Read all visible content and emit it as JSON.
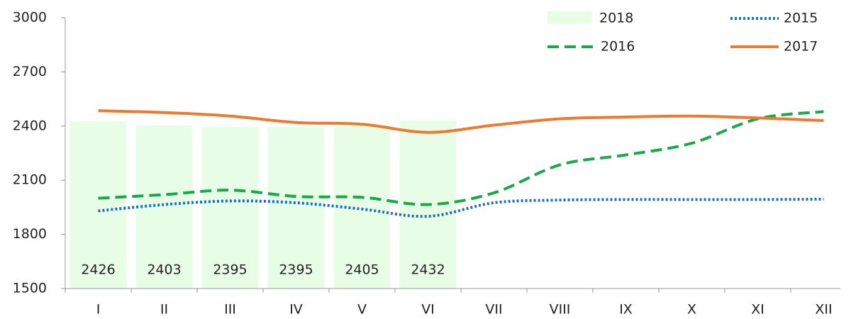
{
  "chart_data": {
    "type": "line",
    "categories": [
      "I",
      "II",
      "III",
      "IV",
      "V",
      "VI",
      "VII",
      "VIII",
      "IX",
      "X",
      "XI",
      "XII"
    ],
    "bars": {
      "name": "2018",
      "color": "#e8fde6",
      "values": [
        2426,
        2403,
        2395,
        2395,
        2405,
        2432
      ]
    },
    "series": [
      {
        "name": "2015",
        "color": "#1f6fbf",
        "style": "dotted",
        "values": [
          1930,
          1965,
          1985,
          1975,
          1940,
          1900,
          1975,
          1990,
          1993,
          1993,
          1993,
          1995
        ]
      },
      {
        "name": "2016",
        "color": "#1aa84a",
        "style": "dashed",
        "values": [
          2000,
          2020,
          2045,
          2010,
          2005,
          1965,
          2030,
          2185,
          2240,
          2305,
          2440,
          2480
        ]
      },
      {
        "name": "2017",
        "color": "#ee7a30",
        "style": "solid",
        "values": [
          2485,
          2475,
          2455,
          2420,
          2410,
          2365,
          2405,
          2440,
          2450,
          2455,
          2445,
          2430
        ]
      }
    ],
    "ylim": [
      1500,
      3000
    ],
    "yticks": [
      1500,
      1800,
      2100,
      2400,
      2700,
      3000
    ],
    "grid": false
  }
}
